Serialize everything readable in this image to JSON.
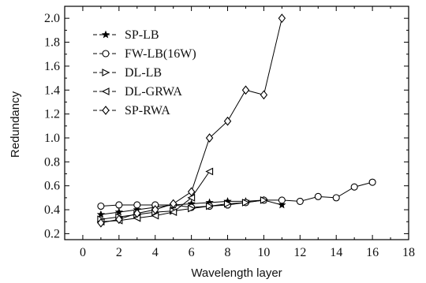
{
  "chart_data": {
    "type": "line",
    "title": "",
    "xlabel": "Wavelength layer",
    "ylabel": "Redundancy",
    "xlim": [
      -1,
      18
    ],
    "ylim": [
      0.15,
      2.1
    ],
    "xticks": [
      0,
      2,
      4,
      6,
      8,
      10,
      12,
      14,
      16,
      18
    ],
    "yticks": [
      0.2,
      0.4,
      0.6,
      0.8,
      1.0,
      1.2,
      1.4,
      1.6,
      1.8,
      2.0
    ],
    "ytick_labels": [
      "0.2",
      "0.4",
      "0.6",
      "0.8",
      "1.0",
      "1.2",
      "1.4",
      "1.6",
      "1.8",
      "2.0"
    ],
    "grid": false,
    "legend_position": "top-left",
    "series": [
      {
        "name": "SP-LB",
        "marker": "star",
        "x": [
          1,
          2,
          3,
          4,
          5,
          6,
          7,
          8,
          9,
          10,
          11
        ],
        "y": [
          0.36,
          0.38,
          0.4,
          0.42,
          0.44,
          0.45,
          0.46,
          0.47,
          0.47,
          0.48,
          0.44
        ]
      },
      {
        "name": "FW-LB(16W)",
        "marker": "circle",
        "x": [
          1,
          2,
          3,
          4,
          5,
          6,
          7,
          8,
          9,
          10,
          11,
          12,
          13,
          14,
          15,
          16
        ],
        "y": [
          0.43,
          0.44,
          0.44,
          0.44,
          0.44,
          0.42,
          0.43,
          0.44,
          0.46,
          0.48,
          0.48,
          0.47,
          0.51,
          0.5,
          0.59,
          0.63
        ]
      },
      {
        "name": "DL-LB",
        "marker": "triangle-right",
        "x": [
          1,
          2,
          3,
          4,
          5,
          6,
          7,
          8,
          9,
          10
        ],
        "y": [
          0.32,
          0.34,
          0.36,
          0.38,
          0.39,
          0.41,
          0.43,
          0.45,
          0.46,
          0.48
        ]
      },
      {
        "name": "DL-GRWA",
        "marker": "triangle-left",
        "x": [
          1,
          2,
          3,
          4,
          5,
          6,
          7
        ],
        "y": [
          0.3,
          0.31,
          0.33,
          0.35,
          0.38,
          0.5,
          0.72
        ]
      },
      {
        "name": "SP-RWA",
        "marker": "diamond",
        "x": [
          1,
          2,
          3,
          4,
          5,
          6,
          7,
          8,
          9,
          10,
          11
        ],
        "y": [
          0.29,
          0.32,
          0.37,
          0.4,
          0.45,
          0.55,
          1.0,
          1.14,
          1.4,
          1.36,
          2.0
        ]
      }
    ]
  }
}
